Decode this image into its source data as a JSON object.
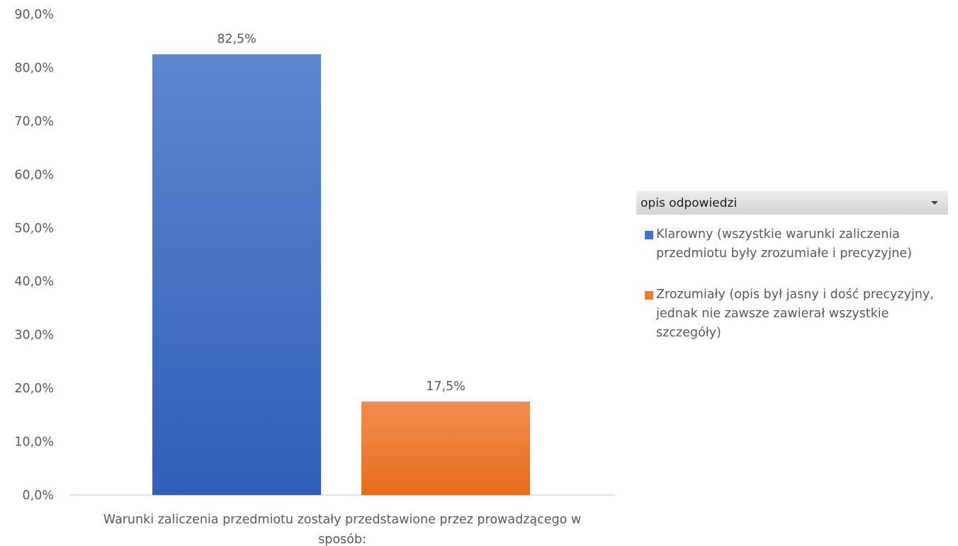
{
  "chart_data": {
    "type": "bar",
    "categories": [
      "Warunki zaliczenia przedmiotu zostały przedstawione przez prowadzącego w sposób:"
    ],
    "series": [
      {
        "name": "Klarowny (wszystkie warunki zaliczenia przedmiotu były zrozumiałe i precyzyjne)",
        "values": [
          82.5
        ],
        "label": "82,5%",
        "color": "#4472C4"
      },
      {
        "name": "Zrozumiały (opis był jasny i dość precyzyjny, jednak nie zawsze zawierał wszystkie szczegóły)",
        "values": [
          17.5
        ],
        "label": "17,5%",
        "color": "#ED7D31"
      }
    ],
    "ylim": [
      0,
      90
    ],
    "yticks": [
      "0,0%",
      "10,0%",
      "20,0%",
      "30,0%",
      "40,0%",
      "50,0%",
      "60,0%",
      "70,0%",
      "80,0%",
      "90,0%"
    ],
    "grid": false,
    "legend_position": "right"
  },
  "legend": {
    "title": "opis odpowiedzi",
    "dropdown_icon": "chevron-down-icon"
  }
}
